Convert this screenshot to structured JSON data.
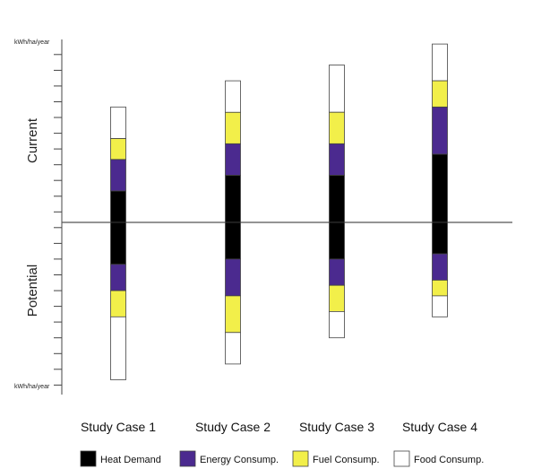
{
  "chart_data": {
    "type": "bar",
    "stacked": true,
    "diverging": true,
    "title": "",
    "unit_label_top": "kWh/ha/year",
    "unit_label_bottom": "kWh/ha/year",
    "upper_label": "Current",
    "lower_label": "Potential",
    "ylim": [
      -17,
      20
    ],
    "categories": [
      "Study Case 1",
      "Study Case 2",
      "Study Case 3",
      "Study Case 4"
    ],
    "series": [
      {
        "name": "Heat Demand",
        "color": "#000000",
        "current": [
          3,
          4.5,
          4.5,
          6.5
        ],
        "potential": [
          4,
          3.5,
          3.5,
          3
        ]
      },
      {
        "name": "Energy Consump.",
        "color": "#4b2a8f",
        "current": [
          3,
          3,
          3,
          4.5
        ],
        "potential": [
          2.5,
          3.5,
          2.5,
          2.5
        ]
      },
      {
        "name": "Fuel Consump.",
        "color": "#f2ef4a",
        "current": [
          2,
          3,
          3,
          2.5
        ],
        "potential": [
          2.5,
          3.5,
          2.5,
          1.5
        ]
      },
      {
        "name": "Food Consump.",
        "color": "#ffffff",
        "current": [
          3,
          3,
          4.5,
          3.5
        ],
        "potential": [
          6,
          3,
          2.5,
          2
        ]
      }
    ]
  }
}
